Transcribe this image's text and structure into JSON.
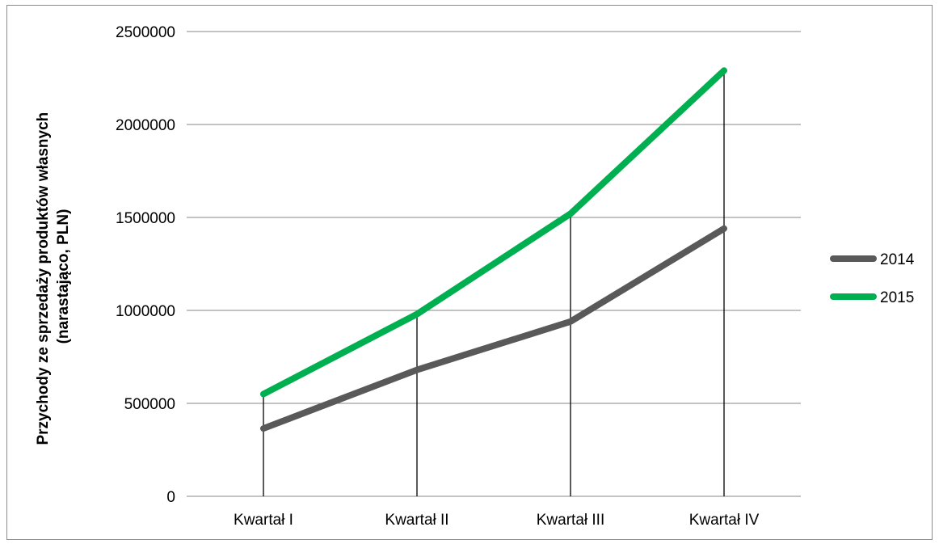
{
  "chart_data": {
    "type": "line",
    "title": "",
    "xlabel": "",
    "ylabel": [
      "Przychody ze sprzedaży produktów własnych",
      "(narastająco, PLN)"
    ],
    "categories": [
      "Kwartał I",
      "Kwartał II",
      "Kwartał III",
      "Kwartał IV"
    ],
    "ylim": [
      0,
      2500000
    ],
    "yticks": [
      0,
      500000,
      1000000,
      1500000,
      2000000,
      2500000
    ],
    "ytick_labels": [
      "0",
      "500000",
      "1000000",
      "1500000",
      "2000000",
      "2500000"
    ],
    "grid": "horizontal",
    "drop_lines": true,
    "legend_position": "right",
    "series": [
      {
        "name": "2014",
        "values": [
          365000,
          680000,
          940000,
          1440000
        ],
        "color": "#595959"
      },
      {
        "name": "2015",
        "values": [
          550000,
          980000,
          1520000,
          2290000
        ],
        "color": "#00b050"
      }
    ]
  },
  "colors": {
    "grid": "#878787",
    "drop_line": "#000000",
    "frame": "#8c8c8c"
  }
}
